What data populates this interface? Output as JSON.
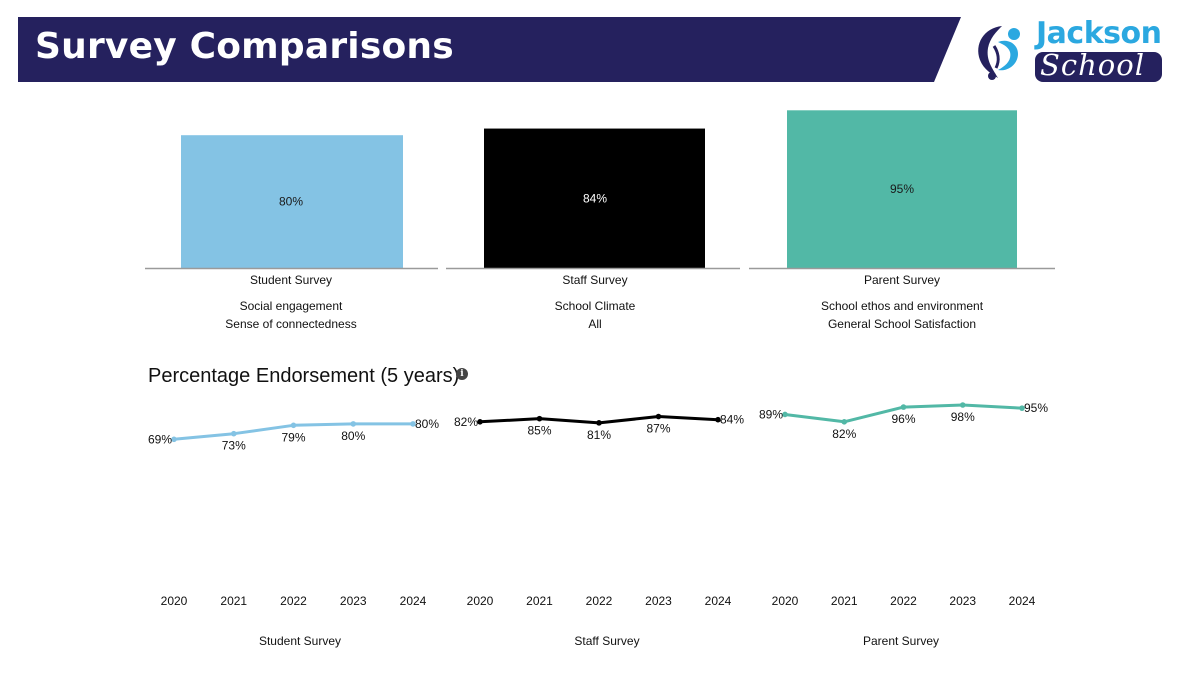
{
  "header": {
    "title": "Survey Comparisons",
    "banner_color": "#25215e"
  },
  "logo": {
    "name_top": "Jackson",
    "name_bottom": "School",
    "primary_color": "#2ba8e0",
    "secondary_color": "#25215e",
    "icon": "figure-swirl-logo-icon"
  },
  "trend_section": {
    "title": "Percentage Endorsement (5 years)",
    "info_icon": "info-icon"
  },
  "chart_data": [
    {
      "type": "bar",
      "title": "",
      "categories": [
        "Student Survey",
        "Staff Survey",
        "Parent Survey"
      ],
      "values": [
        80,
        84,
        95
      ],
      "labels": [
        "80%",
        "84%",
        "95%"
      ],
      "subtitles": [
        [
          "Social engagement",
          "Sense of connectedness"
        ],
        [
          "School Climate",
          "All"
        ],
        [
          "School ethos and environment",
          "General School Satisfaction"
        ]
      ],
      "colors": [
        "#84c3e4",
        "#000000",
        "#52b8a6"
      ],
      "label_colors": [
        "#1a1a1a",
        "#ffffff",
        "#1a1a1a"
      ],
      "ylim": [
        0,
        100
      ],
      "xlabel": "",
      "ylabel": "",
      "grid": false
    },
    {
      "type": "line",
      "title": "Percentage Endorsement (5 years)",
      "series": [
        {
          "name": "Student Survey",
          "x": [
            "2020",
            "2021",
            "2022",
            "2023",
            "2024"
          ],
          "values": [
            69,
            73,
            79,
            80,
            80
          ],
          "labels": [
            "69%",
            "73%",
            "79%",
            "80%",
            "80%"
          ],
          "color": "#84c3e4"
        },
        {
          "name": "Staff Survey",
          "x": [
            "2020",
            "2021",
            "2022",
            "2023",
            "2024"
          ],
          "values": [
            82,
            85,
            81,
            87,
            84
          ],
          "labels": [
            "82%",
            "85%",
            "81%",
            "87%",
            "84%"
          ],
          "color": "#000000"
        },
        {
          "name": "Parent Survey",
          "x": [
            "2020",
            "2021",
            "2022",
            "2023",
            "2024"
          ],
          "values": [
            89,
            82,
            96,
            98,
            95
          ],
          "labels": [
            "89%",
            "82%",
            "96%",
            "98%",
            "95%"
          ],
          "color": "#52b8a6"
        }
      ],
      "xlabel": "",
      "ylabel": "",
      "grid": false
    }
  ]
}
